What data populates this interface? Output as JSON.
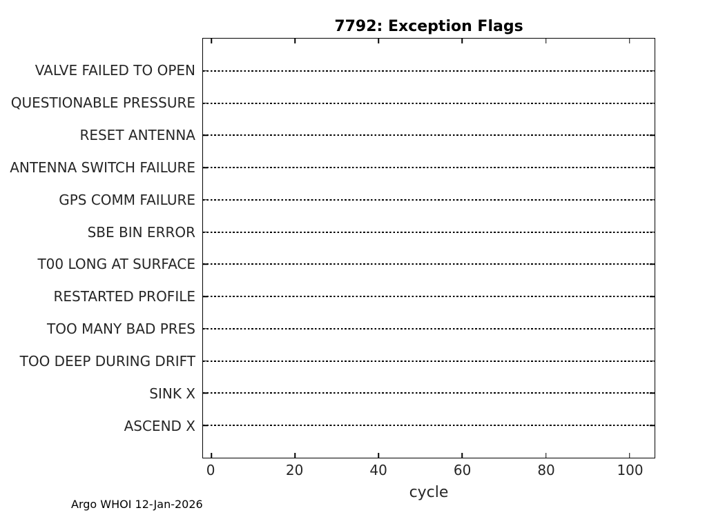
{
  "figure": {
    "footer": "Argo WHOI 12-Jan-2026"
  },
  "chart_data": {
    "type": "scatter",
    "title": "7792: Exception Flags",
    "xlabel": "cycle",
    "ylabel": "",
    "categories_top_to_bottom": [
      "VALVE FAILED TO OPEN",
      "QUESTIONABLE PRESSURE",
      "RESET ANTENNA",
      "ANTENNA SWITCH FAILURE",
      "GPS COMM FAILURE",
      "SBE BIN ERROR",
      "T00 LONG AT SURFACE",
      "RESTARTED PROFILE",
      "TOO MANY BAD PRES",
      "TOO DEEP DURING DRIFT",
      "SINK X",
      "ASCEND X"
    ],
    "x_ticks": [
      0,
      20,
      40,
      60,
      80,
      100
    ],
    "xlim": [
      -2,
      106
    ],
    "ylim": [
      0,
      13
    ],
    "series": [],
    "grid": "dotted horizontal reference line per category, no data points plotted",
    "legend": "none",
    "colors": {
      "line": "#000000",
      "tick_label": "#262626",
      "title": "#000000",
      "background": "#ffffff"
    }
  }
}
